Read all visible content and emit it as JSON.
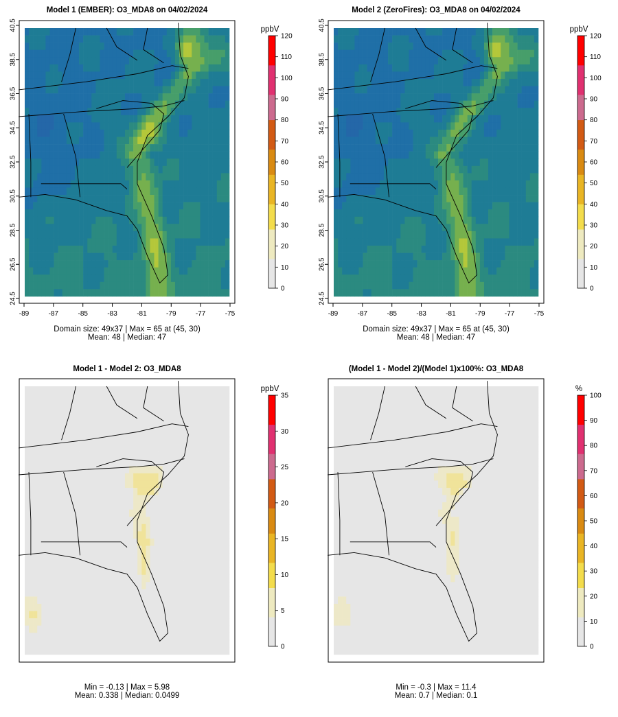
{
  "colors": {
    "ocean_text": "#000000",
    "scale": [
      "#e6e6e6",
      "#eeeac0",
      "#f3dc4c",
      "#e9b524",
      "#d98a12",
      "#d25a14",
      "#cc6a8e",
      "#e03070",
      "#ff0000"
    ],
    "conc": [
      "#2467a8",
      "#1f6fa7",
      "#1e7c95",
      "#2b8a80",
      "#479e6a",
      "#76b04e",
      "#b4c73a",
      "#e6dc3a"
    ],
    "missing": "#e6e6e6"
  },
  "panels": [
    {
      "id": "model1",
      "title": "Model 1 (EMBER): O3_MDA8 on 04/02/2024",
      "colorbar_unit": "ppbV",
      "colorbar_ticks": [
        "0",
        "10",
        "20",
        "30",
        "40",
        "50",
        "60",
        "70",
        "80",
        "90",
        "100",
        "110",
        "120"
      ],
      "colorbar_max": 120,
      "x_ticks": [
        "-89",
        "-87",
        "-85",
        "-83",
        "-81",
        "-79",
        "-77",
        "-75"
      ],
      "y_ticks": [
        "24.5",
        "26.5",
        "28.5",
        "30.5",
        "32.5",
        "34.5",
        "36.5",
        "38.5",
        "40.5"
      ],
      "stats_line1": "Domain size: 49x37 | Max = 65 at (45, 30)",
      "stats_line2": "Mean: 48 |  Median: 47"
    },
    {
      "id": "model2",
      "title": "Model 2 (ZeroFires): O3_MDA8 on 04/02/2024",
      "colorbar_unit": "ppbV",
      "colorbar_ticks": [
        "0",
        "10",
        "20",
        "30",
        "40",
        "50",
        "60",
        "70",
        "80",
        "90",
        "100",
        "110",
        "120"
      ],
      "colorbar_max": 120,
      "x_ticks": [
        "-89",
        "-87",
        "-85",
        "-83",
        "-81",
        "-79",
        "-77",
        "-75"
      ],
      "y_ticks": [
        "24.5",
        "26.5",
        "28.5",
        "30.5",
        "32.5",
        "34.5",
        "36.5",
        "38.5",
        "40.5"
      ],
      "stats_line1": "Domain size: 49x37 | Max = 65 at (45, 30)",
      "stats_line2": "Mean: 48 |  Median: 47"
    },
    {
      "id": "diff",
      "title": "Model 1 - Model 2: O3_MDA8",
      "colorbar_unit": "ppbV",
      "colorbar_ticks": [
        "0",
        "5",
        "10",
        "15",
        "20",
        "25",
        "30",
        "35"
      ],
      "colorbar_max": 35,
      "stats_line1": "Min = -0.13 | Max = 5.98",
      "stats_line2": "Mean: 0.338 |  Median: 0.0499"
    },
    {
      "id": "pct",
      "title": "(Model 1 - Model 2)/(Model 1)x100%: O3_MDA8",
      "colorbar_unit": "%",
      "colorbar_ticks": [
        "0",
        "10",
        "20",
        "30",
        "40",
        "50",
        "60",
        "70",
        "80",
        "90",
        "100"
      ],
      "colorbar_max": 100,
      "stats_line1": "Min = -0.3 | Max = 11.4",
      "stats_line2": "Mean: 0.7 |  Median: 0.1"
    }
  ],
  "chart_data": [
    {
      "type": "heatmap",
      "title": "Model 1 (EMBER): O3_MDA8 on 04/02/2024",
      "xlim": [
        -89,
        -75
      ],
      "ylim": [
        24.5,
        40.5
      ],
      "colorbar_range": [
        0,
        120
      ],
      "grid": "49x37",
      "max": 65,
      "mean": 48,
      "median": 47
    },
    {
      "type": "heatmap",
      "title": "Model 2 (ZeroFires): O3_MDA8 on 04/02/2024",
      "xlim": [
        -89,
        -75
      ],
      "ylim": [
        24.5,
        40.5
      ],
      "colorbar_range": [
        0,
        120
      ],
      "grid": "49x37",
      "max": 65,
      "mean": 48,
      "median": 47
    },
    {
      "type": "heatmap",
      "title": "Model 1 - Model 2: O3_MDA8",
      "colorbar_range": [
        0,
        35
      ],
      "min": -0.13,
      "max": 5.98,
      "mean": 0.338,
      "median": 0.0499
    },
    {
      "type": "heatmap",
      "title": "(Model 1 - Model 2)/(Model 1)x100%: O3_MDA8",
      "colorbar_range": [
        0,
        100
      ],
      "min": -0.3,
      "max": 11.4,
      "mean": 0.7,
      "median": 0.1
    }
  ]
}
